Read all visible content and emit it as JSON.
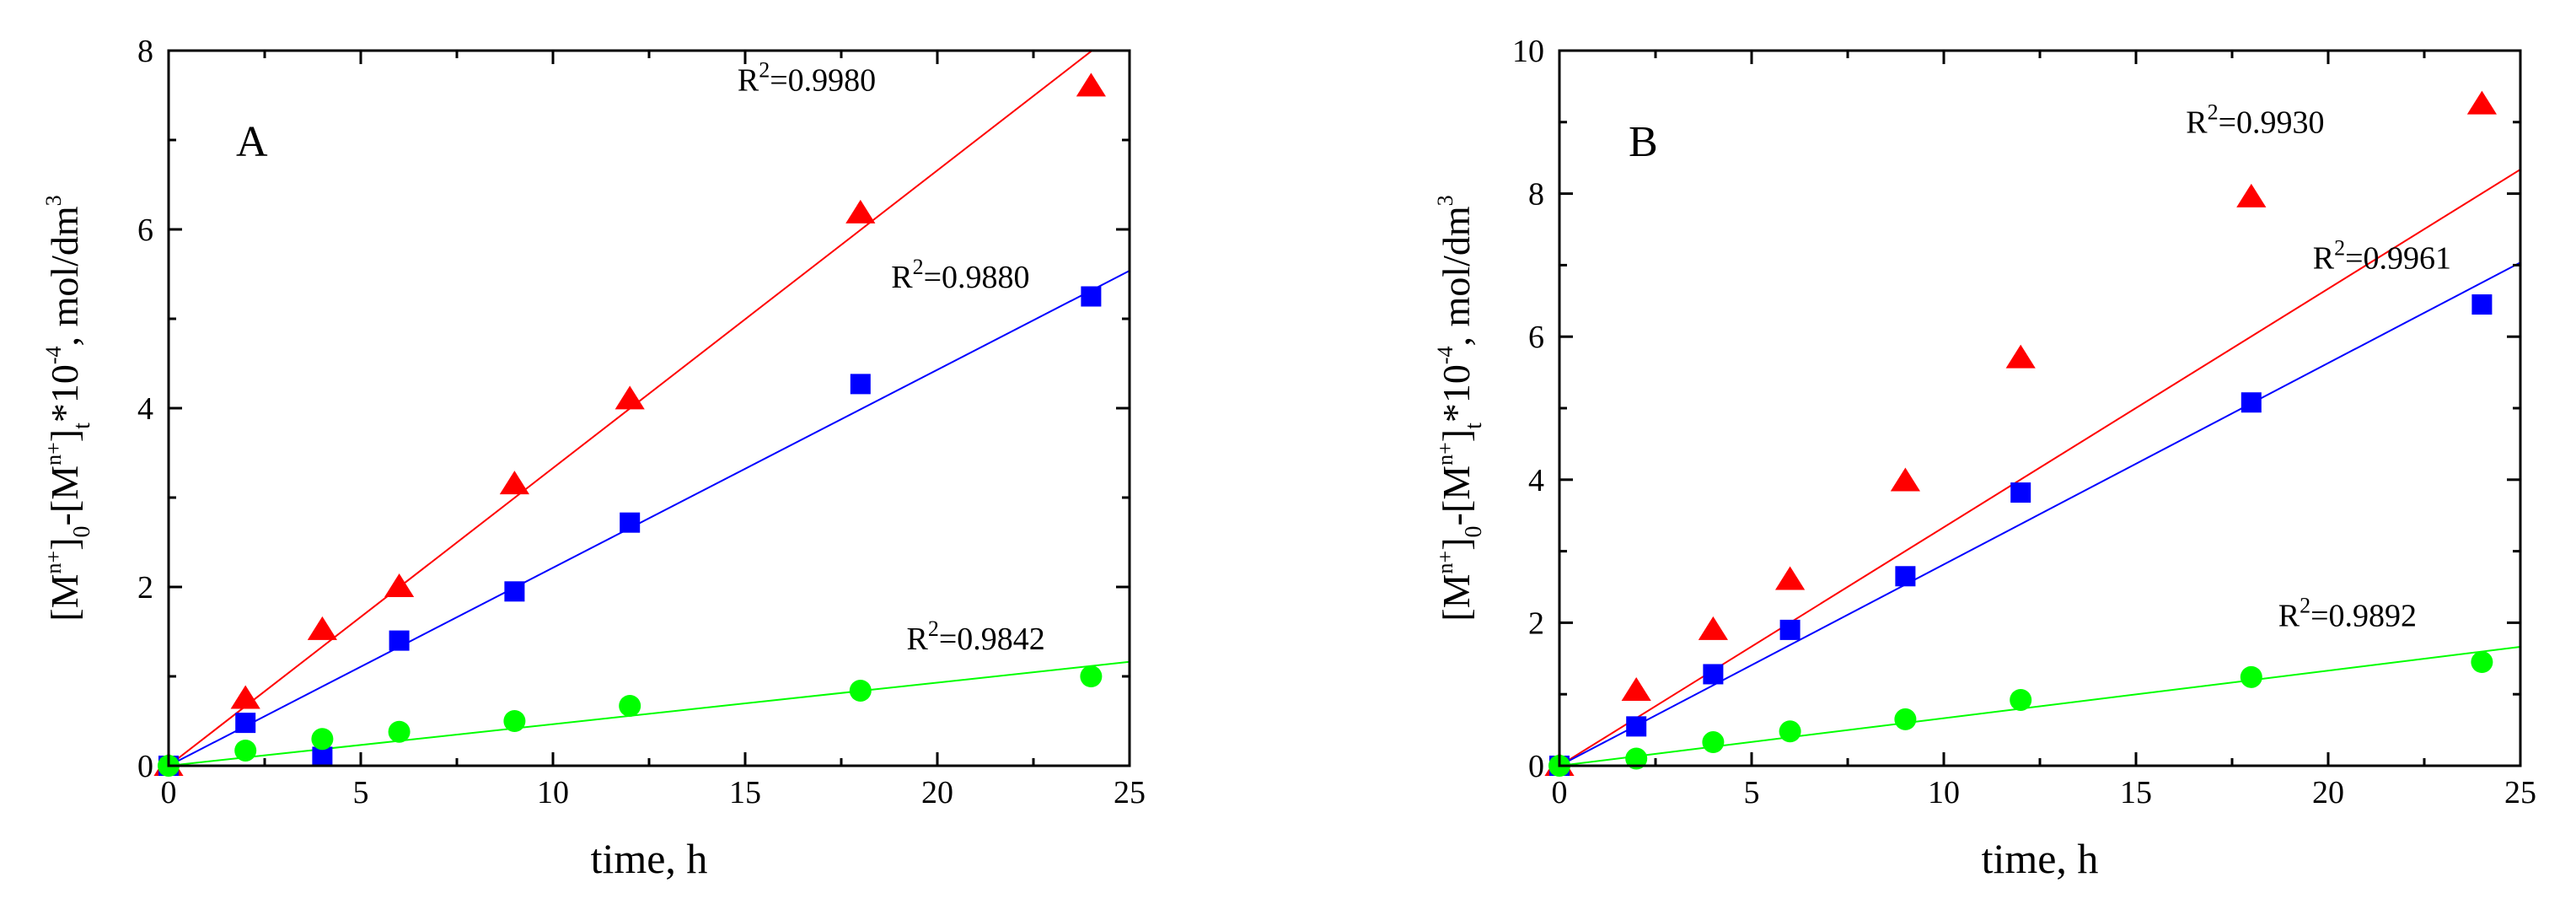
{
  "chart_data": [
    {
      "type": "scatter",
      "panel_label": "A",
      "xlabel": "time, h",
      "ylabel": {
        "bracket_open": "[M",
        "species_superscript": "n+",
        "subscript_initial": "0",
        "subscript_time": "t",
        "multiplier": "*10",
        "exponent": "-4",
        "units_prefix": ", mol/dm",
        "units_exponent": "3"
      },
      "xlim": [
        0,
        25
      ],
      "ylim": [
        0,
        8
      ],
      "xticks": [
        0,
        5,
        10,
        15,
        20,
        25
      ],
      "yticks": [
        0,
        2,
        4,
        6,
        8
      ],
      "series": [
        {
          "name": "triangles",
          "marker": "triangle",
          "color": "#ff0000",
          "x": [
            0,
            2,
            4,
            6,
            9,
            12,
            18,
            24
          ],
          "y": [
            0,
            0.75,
            1.52,
            2.0,
            3.15,
            4.1,
            6.18,
            7.6
          ],
          "fit_slope": 0.333,
          "r2_prefix": "R",
          "r2_exponent": "2",
          "r2_value": "=0.9980",
          "r2_anchor": [
            14.8,
            7.55
          ]
        },
        {
          "name": "squares",
          "marker": "square",
          "color": "#0000ff",
          "x": [
            0,
            2,
            4,
            6,
            9,
            12,
            18,
            24
          ],
          "y": [
            0,
            0.48,
            0.1,
            1.4,
            1.95,
            2.72,
            4.27,
            5.25
          ],
          "fit_slope": 0.2215,
          "r2_prefix": "R",
          "r2_exponent": "2",
          "r2_value": "=0.9880",
          "r2_anchor": [
            18.8,
            5.35
          ]
        },
        {
          "name": "circles",
          "marker": "circle",
          "color": "#00ff00",
          "x": [
            0,
            2,
            4,
            6,
            9,
            12,
            18,
            24
          ],
          "y": [
            0,
            0.17,
            0.3,
            0.38,
            0.5,
            0.67,
            0.84,
            1.0
          ],
          "fit_slope": 0.0465,
          "r2_prefix": "R",
          "r2_exponent": "2",
          "r2_value": "=0.9842",
          "r2_anchor": [
            19.2,
            1.3
          ]
        }
      ]
    },
    {
      "type": "scatter",
      "panel_label": "B",
      "xlabel": "time, h",
      "ylabel": {
        "bracket_open": "[M",
        "species_superscript": "n+",
        "subscript_initial": "0",
        "subscript_time": "t",
        "multiplier": "*10",
        "exponent": "-4",
        "units_prefix": ", mol/dm",
        "units_exponent": "3"
      },
      "xlim": [
        0,
        25
      ],
      "ylim": [
        0,
        10
      ],
      "xticks": [
        0,
        5,
        10,
        15,
        20,
        25
      ],
      "yticks": [
        0,
        2,
        4,
        6,
        8,
        10
      ],
      "series": [
        {
          "name": "triangles",
          "marker": "triangle",
          "color": "#ff0000",
          "x": [
            0,
            2,
            4,
            6,
            9,
            12,
            18,
            24
          ],
          "y": [
            0,
            1.05,
            1.9,
            2.6,
            3.98,
            5.7,
            7.95,
            9.25
          ],
          "fit_slope": 0.3335,
          "r2_prefix": "R",
          "r2_exponent": "2",
          "r2_value": "=0.9930",
          "r2_anchor": [
            16.3,
            8.85
          ]
        },
        {
          "name": "squares",
          "marker": "square",
          "color": "#0000ff",
          "x": [
            0,
            2,
            4,
            6,
            9,
            12,
            18,
            24
          ],
          "y": [
            0,
            0.55,
            1.28,
            1.9,
            2.65,
            3.82,
            5.08,
            6.45
          ],
          "fit_slope": 0.2815,
          "r2_prefix": "R",
          "r2_exponent": "2",
          "r2_value": "=0.9961",
          "r2_anchor": [
            19.6,
            6.95
          ]
        },
        {
          "name": "circles",
          "marker": "circle",
          "color": "#00ff00",
          "x": [
            0,
            2,
            4,
            6,
            9,
            12,
            18,
            24
          ],
          "y": [
            0,
            0.1,
            0.33,
            0.48,
            0.65,
            0.92,
            1.24,
            1.45
          ],
          "fit_slope": 0.0665,
          "r2_prefix": "R",
          "r2_exponent": "2",
          "r2_value": "=0.9892",
          "r2_anchor": [
            18.7,
            1.95
          ]
        }
      ]
    }
  ]
}
